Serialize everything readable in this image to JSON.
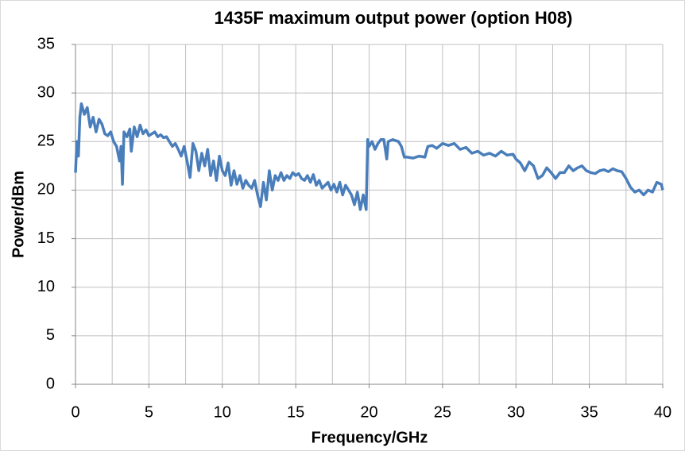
{
  "chart_data": {
    "type": "line",
    "title": "1435F maximum output power (option H08)",
    "x_label": "Frequency/GHz",
    "y_label": "Power/dBm",
    "xlim": [
      0,
      40
    ],
    "xticks": [
      0,
      5,
      10,
      15,
      20,
      25,
      30,
      35,
      40
    ],
    "xgrid": [
      0,
      2.5,
      5,
      7.5,
      10,
      12.5,
      15,
      17.5,
      20,
      22.5,
      25,
      27.5,
      30,
      32.5,
      35,
      37.5,
      40
    ],
    "ylim": [
      0,
      35
    ],
    "yticks": [
      0,
      5,
      10,
      15,
      20,
      25,
      30,
      35
    ],
    "grid": true,
    "series": [
      {
        "name": "Power",
        "color": "#4a7ebb",
        "x": [
          0,
          0.1,
          0.2,
          0.3,
          0.4,
          0.6,
          0.8,
          1.0,
          1.2,
          1.4,
          1.6,
          1.8,
          2.0,
          2.2,
          2.4,
          2.6,
          2.8,
          3.0,
          3.1,
          3.2,
          3.3,
          3.5,
          3.7,
          3.8,
          4.0,
          4.2,
          4.4,
          4.6,
          4.8,
          5.0,
          5.2,
          5.4,
          5.6,
          5.8,
          6.0,
          6.2,
          6.4,
          6.6,
          6.8,
          7.0,
          7.2,
          7.4,
          7.6,
          7.8,
          8.0,
          8.2,
          8.4,
          8.6,
          8.8,
          9.0,
          9.2,
          9.4,
          9.6,
          9.8,
          10.0,
          10.2,
          10.4,
          10.6,
          10.8,
          11.0,
          11.2,
          11.4,
          11.6,
          11.8,
          12.0,
          12.2,
          12.4,
          12.6,
          12.8,
          13.0,
          13.2,
          13.4,
          13.6,
          13.8,
          14.0,
          14.2,
          14.4,
          14.6,
          14.8,
          15.0,
          15.2,
          15.4,
          15.6,
          15.8,
          16.0,
          16.2,
          16.4,
          16.6,
          16.8,
          17.0,
          17.2,
          17.4,
          17.6,
          17.8,
          18.0,
          18.2,
          18.4,
          18.6,
          18.8,
          19.0,
          19.2,
          19.4,
          19.6,
          19.8,
          19.9,
          20.0,
          20.2,
          20.4,
          20.6,
          20.8,
          21.0,
          21.2,
          21.3,
          21.6,
          22.0,
          22.2,
          22.4,
          22.6,
          23.0,
          23.4,
          23.8,
          24.0,
          24.3,
          24.6,
          25.0,
          25.4,
          25.8,
          26.2,
          26.6,
          27.0,
          27.4,
          27.8,
          28.2,
          28.6,
          29.0,
          29.4,
          29.8,
          30.0,
          30.3,
          30.6,
          30.9,
          31.2,
          31.5,
          31.8,
          32.1,
          32.4,
          32.7,
          33.0,
          33.3,
          33.6,
          33.9,
          34.2,
          34.5,
          34.8,
          35.1,
          35.4,
          35.7,
          36.0,
          36.3,
          36.6,
          36.9,
          37.2,
          37.5,
          37.8,
          38.1,
          38.4,
          38.7,
          39.0,
          39.3,
          39.6,
          39.9,
          40
        ],
        "values": [
          21.8,
          25,
          23.5,
          27.5,
          28.9,
          27.8,
          28.5,
          26.5,
          27.5,
          26,
          27.3,
          26.8,
          25.8,
          25.6,
          26,
          25,
          24.5,
          23,
          24.5,
          20.6,
          26,
          25.5,
          26.3,
          24,
          26.5,
          25.5,
          26.7,
          25.8,
          26.2,
          25.6,
          25.8,
          26,
          25.5,
          25.7,
          25.4,
          25.5,
          25.0,
          24.5,
          24.8,
          24.2,
          23.5,
          24.5,
          23,
          21.3,
          24.8,
          24,
          22,
          23.8,
          22.5,
          24.2,
          21.5,
          23,
          21,
          23.5,
          22,
          21.5,
          22.8,
          20.5,
          22,
          20.6,
          21.5,
          20.2,
          21,
          20.5,
          20.2,
          21,
          19.5,
          18.3,
          20.8,
          19,
          22,
          20,
          21.5,
          21,
          21.8,
          21,
          21.5,
          21.2,
          21.8,
          21.5,
          21.7,
          21.2,
          21,
          21.5,
          20.8,
          21.6,
          20.5,
          21,
          20.2,
          20.5,
          20.8,
          20,
          20.6,
          19.8,
          20.8,
          19.5,
          20.5,
          20,
          19.5,
          18.5,
          19.8,
          18,
          19.5,
          18,
          25.2,
          24.5,
          25,
          24.2,
          24.8,
          25.2,
          25.2,
          23.2,
          25,
          25.2,
          25,
          24.5,
          23.4,
          23.4,
          23.3,
          23.5,
          23.4,
          24.5,
          24.6,
          24.3,
          24.8,
          24.6,
          24.8,
          24.2,
          24.4,
          23.8,
          24,
          23.6,
          23.8,
          23.5,
          24,
          23.6,
          23.7,
          23.2,
          22.8,
          22,
          22.9,
          22.5,
          21.2,
          21.5,
          22.3,
          21.8,
          21.2,
          21.8,
          21.8,
          22.5,
          22,
          22.3,
          22.5,
          22,
          21.8,
          21.7,
          22,
          22.1,
          21.9,
          22.2,
          22,
          21.9,
          21.2,
          20.3,
          19.8,
          20,
          19.5,
          20,
          19.8,
          20.8,
          20.6,
          20
        ]
      }
    ]
  }
}
